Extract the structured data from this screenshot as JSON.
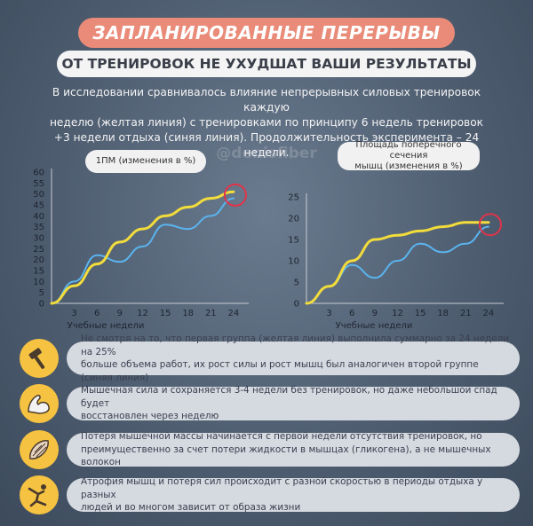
{
  "header": {
    "title": "ЗАПЛАНИРОВАННЫЕ ПЕРЕРЫВЫ",
    "subtitle": "ОТ ТРЕНИРОВОК НЕ УХУДШАТ ВАШИ РЕЗУЛЬТАТЫ"
  },
  "intro": {
    "line1": "В исследовании сравнивалось влияние непрерывных силовых тренировок каждую",
    "line2": "неделю (желтая линия) с тренировками по принципу 6 недель тренировок",
    "line3": "+3 недели отдыха (синяя линия). Продолжительность эксперимента – 24 недели."
  },
  "watermark": "@denisfiber",
  "colors": {
    "yellow_line": "#f2dc3c",
    "blue_line": "#5ab4ee",
    "highlight_circle": "#e0344a",
    "title_pill": "#e98b78",
    "icon_bg": "#f5c242"
  },
  "chart_data": [
    {
      "type": "line",
      "title_line1": "1ПМ (изменения в %)",
      "title_line2": "",
      "xlabel": "Учебные недели",
      "x_ticks": [
        3,
        6,
        9,
        12,
        15,
        18,
        21,
        24
      ],
      "y_ticks": [
        0,
        5,
        10,
        15,
        20,
        25,
        30,
        35,
        40,
        45,
        50,
        55,
        60
      ],
      "xlim": [
        0,
        26
      ],
      "ylim": [
        0,
        60
      ],
      "series": [
        {
          "color": "yellow",
          "x": [
            0,
            3,
            6,
            9,
            12,
            15,
            18,
            21,
            24
          ],
          "y": [
            0,
            8,
            18,
            28,
            34,
            40,
            44,
            48,
            51
          ]
        },
        {
          "color": "blue",
          "x": [
            0,
            3,
            6,
            9,
            12,
            15,
            18,
            21,
            24
          ],
          "y": [
            0,
            10,
            22,
            19,
            26,
            36,
            34,
            40,
            48
          ]
        }
      ],
      "highlight_x": 24
    },
    {
      "type": "line",
      "title_line1": "Площадь поперечного сечения",
      "title_line2": "мышц (изменения в %)",
      "xlabel": "Учебные недели",
      "x_ticks": [
        3,
        6,
        9,
        12,
        15,
        18,
        21,
        24
      ],
      "y_ticks": [
        0,
        5,
        10,
        15,
        20,
        25
      ],
      "xlim": [
        0,
        26
      ],
      "ylim": [
        0,
        25
      ],
      "series": [
        {
          "color": "yellow",
          "x": [
            0,
            3,
            6,
            9,
            12,
            15,
            18,
            21,
            24
          ],
          "y": [
            0,
            4,
            10,
            15,
            16,
            17,
            18,
            19,
            19
          ]
        },
        {
          "color": "blue",
          "x": [
            0,
            3,
            6,
            9,
            12,
            15,
            18,
            21,
            24
          ],
          "y": [
            0,
            4,
            9,
            6,
            10,
            14,
            12,
            14,
            18
          ]
        }
      ],
      "highlight_x": 24
    }
  ],
  "facts": [
    {
      "icon": "hammer-icon",
      "line1": "Не смотря на то, что первая группа (желтая линия) выполнила суммарно за 24 недели на 25%",
      "line2": "больше объема работ, их рост силы и рост мышц был аналогичен второй группе (синяя линия)"
    },
    {
      "icon": "flexed-arm-icon",
      "line1": "Мышечная сила и сохраняется 3-4 недели без тренировок, но даже небольшой спад будет",
      "line2": "восстановлен через неделю"
    },
    {
      "icon": "muscle-fiber-icon",
      "line1": "Потеря мышечной массы начинается с первой недели отсутствия тренировок, но",
      "line2": "преимущественно за счет потери жидкости в мышцах (гликогена), а не мышечных волокон"
    },
    {
      "icon": "stretching-person-icon",
      "line1": "Атрофия мышц и потеря сил происходит с разной скоростью в периоды отдыха у разных",
      "line2": "людей и во многом зависит от образа жизни"
    }
  ]
}
